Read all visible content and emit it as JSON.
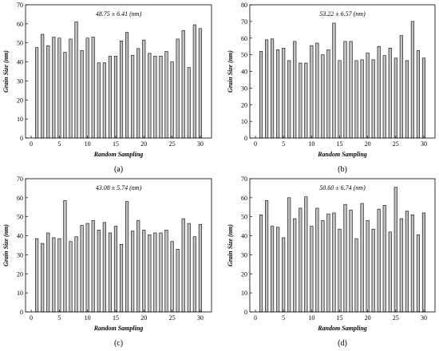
{
  "figure": {
    "colors": {
      "bar_fill": "#c0c0c0",
      "bar_stroke": "#000000",
      "axis": "#000000",
      "background": "#ffffff"
    }
  },
  "chart_data": [
    {
      "type": "bar",
      "panel_label": "(a)",
      "annotation": "48.75 ± 6.41 (nm)",
      "xlabel": "Random Sampling",
      "ylabel": "Grain Size (nm)",
      "xlim": [
        -1,
        32
      ],
      "ylim": [
        0,
        70
      ],
      "xticks": [
        0,
        5,
        10,
        15,
        20,
        25,
        30
      ],
      "yticks": [
        0,
        10,
        20,
        30,
        40,
        50,
        60,
        70
      ],
      "x": [
        1,
        2,
        3,
        4,
        5,
        6,
        7,
        8,
        9,
        10,
        11,
        12,
        13,
        14,
        15,
        16,
        17,
        18,
        19,
        20,
        21,
        22,
        23,
        24,
        25,
        26,
        27,
        28,
        29,
        30
      ],
      "values": [
        47.5,
        54.5,
        48.5,
        53,
        52.5,
        45,
        52,
        61,
        46,
        52.5,
        53,
        39.5,
        39.5,
        43,
        43,
        51,
        55.5,
        43.5,
        47,
        51.5,
        44.5,
        43,
        43,
        45.5,
        40,
        52,
        56.5,
        37,
        59.5,
        57.5
      ],
      "grid": false
    },
    {
      "type": "bar",
      "panel_label": "(b)",
      "annotation": "53.22 ± 6.57 (nm)",
      "xlabel": "Random Sampling",
      "ylabel": "Grain Size (nm)",
      "xlim": [
        -1,
        32
      ],
      "ylim": [
        0,
        80
      ],
      "xticks": [
        0,
        5,
        10,
        15,
        20,
        25,
        30
      ],
      "yticks": [
        0,
        10,
        20,
        30,
        40,
        50,
        60,
        70,
        80
      ],
      "x": [
        1,
        2,
        3,
        4,
        5,
        6,
        7,
        8,
        9,
        10,
        11,
        12,
        13,
        14,
        15,
        16,
        17,
        18,
        19,
        20,
        21,
        22,
        23,
        24,
        25,
        26,
        27,
        28,
        29,
        30
      ],
      "values": [
        52,
        59,
        59.5,
        53,
        54,
        46.5,
        58,
        45,
        45,
        55.5,
        57,
        50,
        53,
        69,
        46.5,
        58,
        58,
        46.5,
        47,
        51,
        47,
        55,
        49.5,
        54,
        48,
        61.5,
        46.5,
        70,
        52.5,
        48
      ],
      "grid": false
    },
    {
      "type": "bar",
      "panel_label": "(c)",
      "annotation": "43.08 ± 5.74 (nm)",
      "xlabel": "Random Sampling",
      "ylabel": "Grain Size (nm)",
      "xlim": [
        -1,
        32
      ],
      "ylim": [
        0,
        70
      ],
      "xticks": [
        0,
        5,
        10,
        15,
        20,
        25,
        30
      ],
      "yticks": [
        0,
        10,
        20,
        30,
        40,
        50,
        60,
        70
      ],
      "x": [
        1,
        2,
        3,
        4,
        5,
        6,
        7,
        8,
        9,
        10,
        11,
        12,
        13,
        14,
        15,
        16,
        17,
        18,
        19,
        20,
        21,
        22,
        23,
        24,
        25,
        26,
        27,
        28,
        29,
        30
      ],
      "values": [
        38.5,
        36,
        41.5,
        39,
        38.5,
        58.5,
        37,
        39.5,
        45.5,
        46.5,
        48,
        43,
        47,
        41.5,
        45,
        35.5,
        58,
        42.5,
        48,
        43,
        40.5,
        41.5,
        41.5,
        43,
        37,
        33,
        49,
        46.5,
        39.5,
        46
      ],
      "grid": false
    },
    {
      "type": "bar",
      "panel_label": "(d)",
      "annotation": "50.60 ± 6.74 (nm)",
      "xlabel": "Random Sampling",
      "ylabel": "Grain Size (nm)",
      "xlim": [
        -1,
        32
      ],
      "ylim": [
        0,
        70
      ],
      "xticks": [
        0,
        5,
        10,
        15,
        20,
        25,
        30
      ],
      "yticks": [
        0,
        10,
        20,
        30,
        40,
        50,
        60,
        70
      ],
      "x": [
        1,
        2,
        3,
        4,
        5,
        6,
        7,
        8,
        9,
        10,
        11,
        12,
        13,
        14,
        15,
        16,
        17,
        18,
        19,
        20,
        21,
        22,
        23,
        24,
        25,
        26,
        27,
        28,
        29,
        30
      ],
      "values": [
        51,
        58.5,
        45,
        44.5,
        39,
        60,
        49,
        54.5,
        60.5,
        45,
        54.5,
        48,
        51.5,
        52,
        43.5,
        56.5,
        53.5,
        38.5,
        57,
        48,
        43.5,
        54,
        56,
        42,
        65.5,
        49,
        53,
        51,
        40.5,
        52
      ],
      "grid": false
    }
  ]
}
